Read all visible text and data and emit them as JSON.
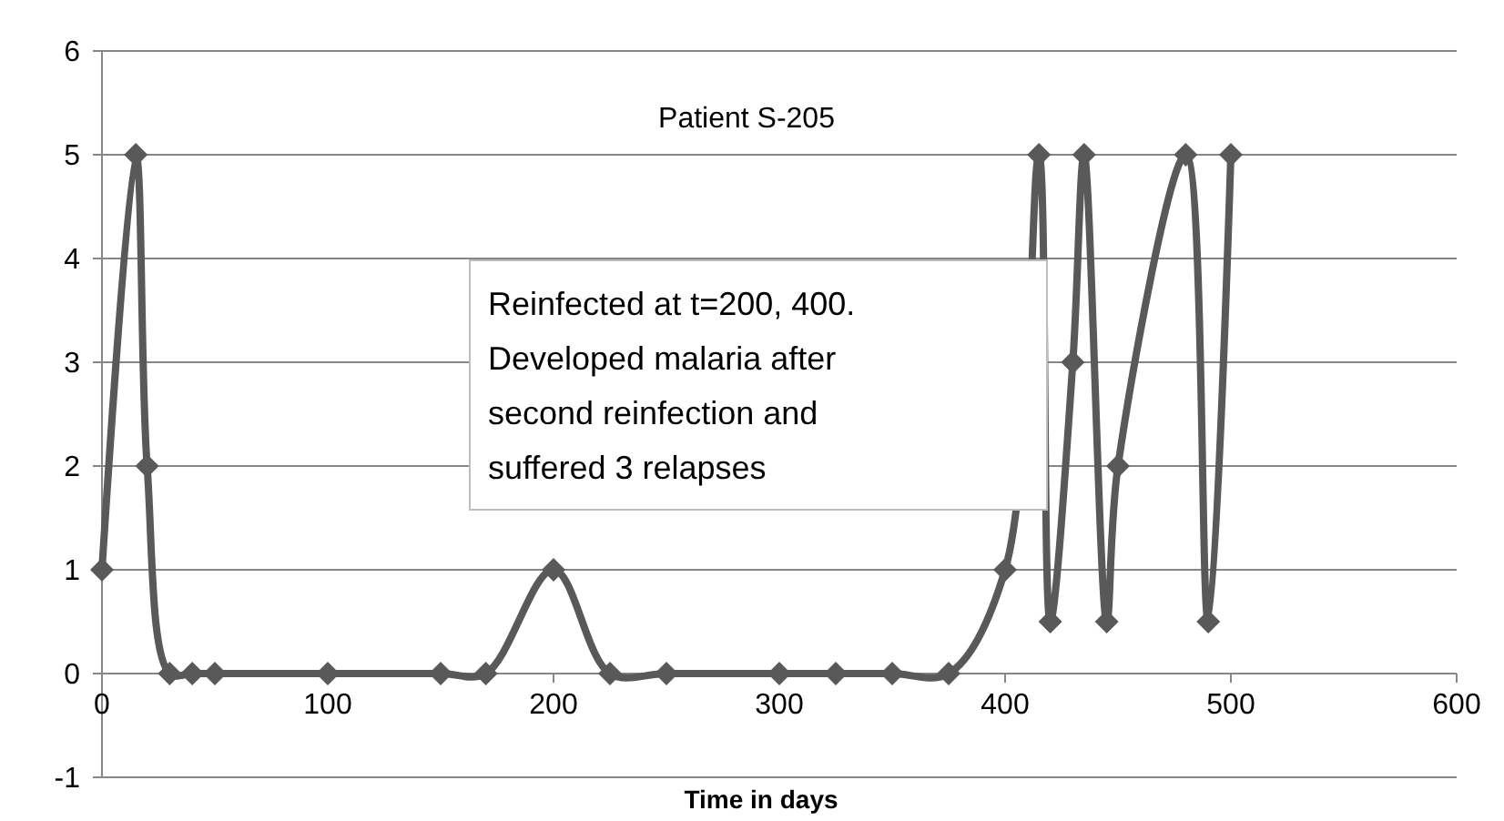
{
  "chart_data": {
    "type": "line",
    "title": "Patient S-205",
    "xlabel": "Time in days",
    "annotations": [
      "Reinfected at t=200, 400. Developed malaria after second reinfection and suffered 3 relapses"
    ],
    "x": [
      0,
      15,
      20,
      30,
      40,
      50,
      100,
      150,
      170,
      200,
      225,
      250,
      300,
      325,
      350,
      375,
      400,
      415,
      420,
      430,
      435,
      445,
      450,
      480,
      490,
      500
    ],
    "series": [
      {
        "color": "#595959",
        "values": [
          1,
          5,
          2,
          0,
          0,
          0,
          0,
          0,
          0,
          1,
          0,
          0,
          0,
          0,
          0,
          0,
          1,
          5,
          0.5,
          3,
          5,
          0.5,
          2,
          5,
          0.5,
          5
        ]
      }
    ],
    "xlim": [
      0,
      600
    ],
    "xticks": [
      0,
      100,
      200,
      300,
      400,
      500,
      600
    ],
    "ylim": [
      -1,
      6
    ],
    "yticks": [
      -1,
      0,
      1,
      2,
      3,
      4,
      5,
      6
    ],
    "grid": "y",
    "marker": "diamond",
    "line_style": "solid"
  }
}
